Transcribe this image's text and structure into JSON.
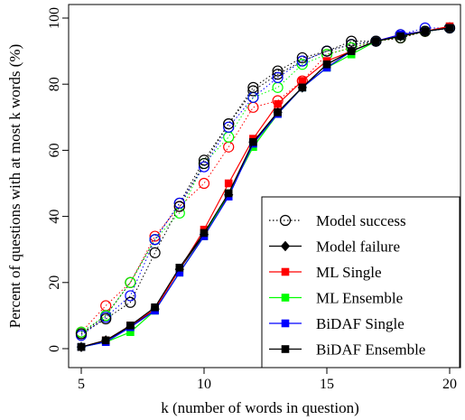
{
  "chart_data": {
    "type": "line",
    "title": "",
    "xlabel": "k (number of words in question)",
    "ylabel": "Percent of questions with at most k words (%)",
    "xlim": [
      5,
      20
    ],
    "ylim": [
      0,
      100
    ],
    "xticks": [
      5,
      10,
      15,
      20
    ],
    "yticks": [
      0,
      20,
      40,
      60,
      80,
      100
    ],
    "grid": false,
    "legend_position": "bottom-right",
    "x": [
      5,
      6,
      7,
      8,
      9,
      10,
      11,
      12,
      13,
      14,
      15,
      16,
      17,
      18,
      19,
      20
    ],
    "series": [
      {
        "name": "Model success",
        "group": "success",
        "style": "dotted-hollow-circle",
        "color": "#000000",
        "values": [
          4.5,
          10,
          20,
          33,
          44,
          57,
          68,
          78,
          83,
          87,
          90,
          93,
          93,
          95,
          96,
          97
        ]
      },
      {
        "name": "ML Single",
        "group": "success",
        "style": "dotted-hollow-circle",
        "color": "#ff0000",
        "values": [
          5,
          13,
          20,
          34,
          43,
          50,
          61,
          73,
          75,
          81,
          89,
          91,
          93,
          94,
          96,
          97
        ]
      },
      {
        "name": "ML Ensemble",
        "group": "success",
        "style": "dotted-hollow-circle",
        "color": "#00ff00",
        "values": [
          5,
          10,
          20,
          33,
          41,
          56,
          64,
          76,
          79,
          86,
          89,
          91,
          93,
          94,
          96,
          97
        ]
      },
      {
        "name": "BiDAF Single",
        "group": "success",
        "style": "dotted-hollow-circle",
        "color": "#0000ff",
        "values": [
          4,
          9.5,
          16,
          33,
          44,
          55,
          67,
          76,
          82,
          87,
          90,
          92,
          93,
          95,
          97,
          97
        ]
      },
      {
        "name": "BiDAF Ensemble",
        "group": "success",
        "style": "dotted-hollow-circle",
        "color": "#000000",
        "values": [
          4.5,
          9,
          14,
          29,
          43,
          56,
          68,
          79,
          84,
          88,
          90,
          92,
          93,
          94,
          96,
          97
        ]
      },
      {
        "name": "Model failure",
        "group": "failure",
        "style": "solid-filled-diamond",
        "color": "#000000",
        "values": [
          0.5,
          2.5,
          6.5,
          12,
          24,
          34.5,
          46.5,
          62.5,
          71.5,
          79,
          86,
          90,
          93,
          94.5,
          96,
          97
        ]
      },
      {
        "name": "ML Single",
        "group": "failure",
        "style": "solid-filled-square",
        "color": "#ff0000",
        "values": [
          0.5,
          2.5,
          7,
          12,
          24,
          36,
          50,
          63.5,
          74,
          81,
          87,
          90,
          93,
          95,
          96,
          97.5
        ]
      },
      {
        "name": "ML Ensemble",
        "group": "failure",
        "style": "solid-filled-square",
        "color": "#00ff00",
        "values": [
          0.5,
          2,
          5,
          11.5,
          23,
          34,
          47,
          61,
          71,
          79,
          85,
          89,
          93,
          94.5,
          96,
          97
        ]
      },
      {
        "name": "BiDAF Single",
        "group": "failure",
        "style": "solid-filled-square",
        "color": "#0000ff",
        "values": [
          0.5,
          2,
          6.5,
          11.5,
          23,
          34,
          46,
          62,
          71,
          79,
          85,
          90,
          93,
          95,
          96,
          97
        ]
      },
      {
        "name": "BiDAF Ensemble",
        "group": "failure",
        "style": "solid-filled-square",
        "color": "#000000",
        "values": [
          0.5,
          2.5,
          7,
          12.5,
          24.5,
          35,
          47,
          62.5,
          71.5,
          79,
          86,
          90,
          93,
          94.5,
          96,
          97
        ]
      }
    ],
    "legend": [
      {
        "label": "Model success",
        "marker": "hollow-circle",
        "line": "dotted",
        "color": "#000000"
      },
      {
        "label": "Model failure",
        "marker": "filled-diamond",
        "line": "solid",
        "color": "#000000"
      },
      {
        "label": "ML Single",
        "marker": "filled-square",
        "line": "solid",
        "color": "#ff0000"
      },
      {
        "label": "ML Ensemble",
        "marker": "filled-square",
        "line": "solid",
        "color": "#00ff00"
      },
      {
        "label": "BiDAF Single",
        "marker": "filled-square",
        "line": "solid",
        "color": "#0000ff"
      },
      {
        "label": "BiDAF Ensemble",
        "marker": "filled-square",
        "line": "solid",
        "color": "#000000"
      }
    ]
  }
}
